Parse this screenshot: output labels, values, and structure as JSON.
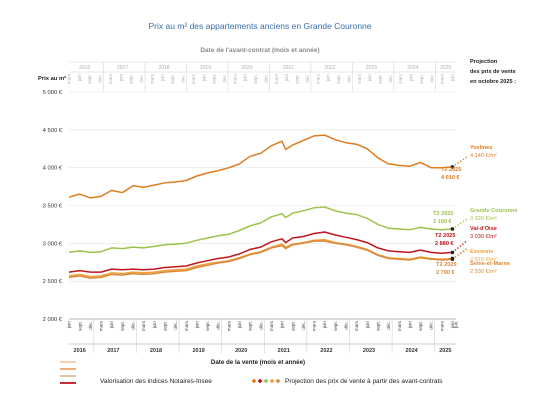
{
  "chart_data": {
    "type": "line",
    "title": "Prix au m² des appartements anciens en Grande Couronne",
    "top_axis_label": "Date de l'avant-contrat (mois et année)",
    "ylabel": "Prix au m²",
    "xlabel": "Date de la vente (mois et année)",
    "projection_header": [
      "Projection",
      "des prix de vente",
      "en octobre 2025 :"
    ],
    "ylim": [
      2000,
      5000
    ],
    "y_ticks": [
      "2 000 €",
      "2 500 €",
      "3 000 €",
      "3 500 €",
      "4 000 €",
      "4 500 €",
      "5 000 €"
    ],
    "y_tick_values": [
      2000,
      2500,
      3000,
      3500,
      4000,
      4500,
      5000
    ],
    "month_labels": [
      "juin",
      "juil.",
      "sept.",
      "déc.",
      "mars"
    ],
    "top_month_labels": [
      "mars",
      "juin",
      "sept.",
      "déc."
    ],
    "bottom_start": "2016-06",
    "bottom_end": "2025-07",
    "top_start": "2016-03",
    "top_end": "2025-07",
    "bottom_years": [
      "2016",
      "2017",
      "2018",
      "2019",
      "2020",
      "2021",
      "2022",
      "2023",
      "2024",
      "2025"
    ],
    "top_years": [
      "2016",
      "2017",
      "2018",
      "2019",
      "2020",
      "2021",
      "2022",
      "2023",
      "2024",
      "2025"
    ],
    "series": [
      {
        "name": "Yvelines",
        "color": "#e07b1f",
        "label_lines": [
          "Yvelines",
          "4 140 €/m²"
        ],
        "end_label": [
          "T2 2025",
          "4 010 €"
        ],
        "points": [
          [
            "2016-06",
            3610
          ],
          [
            "2016-09",
            3650
          ],
          [
            "2016-12",
            3600
          ],
          [
            "2017-03",
            3620
          ],
          [
            "2017-06",
            3700
          ],
          [
            "2017-09",
            3670
          ],
          [
            "2017-12",
            3760
          ],
          [
            "2018-03",
            3740
          ],
          [
            "2018-06",
            3770
          ],
          [
            "2018-09",
            3800
          ],
          [
            "2018-12",
            3810
          ],
          [
            "2019-03",
            3830
          ],
          [
            "2019-06",
            3890
          ],
          [
            "2019-09",
            3930
          ],
          [
            "2019-12",
            3960
          ],
          [
            "2020-03",
            4000
          ],
          [
            "2020-06",
            4050
          ],
          [
            "2020-09",
            4150
          ],
          [
            "2020-12",
            4190
          ],
          [
            "2021-03",
            4290
          ],
          [
            "2021-06",
            4350
          ],
          [
            "2021-07",
            4240
          ],
          [
            "2021-09",
            4300
          ],
          [
            "2021-12",
            4360
          ],
          [
            "2022-03",
            4420
          ],
          [
            "2022-06",
            4430
          ],
          [
            "2022-09",
            4370
          ],
          [
            "2022-12",
            4330
          ],
          [
            "2023-03",
            4310
          ],
          [
            "2023-06",
            4250
          ],
          [
            "2023-09",
            4130
          ],
          [
            "2023-12",
            4050
          ],
          [
            "2024-03",
            4030
          ],
          [
            "2024-06",
            4020
          ],
          [
            "2024-09",
            4070
          ],
          [
            "2024-12",
            4000
          ],
          [
            "2025-03",
            4000
          ],
          [
            "2025-06",
            4010
          ]
        ],
        "projection": [
          [
            "2025-06",
            4010
          ],
          [
            "2025-10",
            4140
          ]
        ]
      },
      {
        "name": "Grande Couronne",
        "color": "#9dc34a",
        "label_lines": [
          "Grande Couronne",
          "3 320 €/m²"
        ],
        "end_label": [
          "T2 2025",
          "3 190 €"
        ],
        "points": [
          [
            "2016-06",
            2880
          ],
          [
            "2016-09",
            2900
          ],
          [
            "2016-12",
            2880
          ],
          [
            "2017-03",
            2890
          ],
          [
            "2017-06",
            2940
          ],
          [
            "2017-09",
            2930
          ],
          [
            "2017-12",
            2950
          ],
          [
            "2018-03",
            2940
          ],
          [
            "2018-06",
            2960
          ],
          [
            "2018-09",
            2980
          ],
          [
            "2018-12",
            2990
          ],
          [
            "2019-03",
            3000
          ],
          [
            "2019-06",
            3040
          ],
          [
            "2019-09",
            3070
          ],
          [
            "2019-12",
            3100
          ],
          [
            "2020-03",
            3120
          ],
          [
            "2020-06",
            3170
          ],
          [
            "2020-09",
            3230
          ],
          [
            "2020-12",
            3270
          ],
          [
            "2021-03",
            3350
          ],
          [
            "2021-06",
            3390
          ],
          [
            "2021-07",
            3340
          ],
          [
            "2021-09",
            3400
          ],
          [
            "2021-12",
            3430
          ],
          [
            "2022-03",
            3470
          ],
          [
            "2022-06",
            3480
          ],
          [
            "2022-09",
            3430
          ],
          [
            "2022-12",
            3400
          ],
          [
            "2023-03",
            3380
          ],
          [
            "2023-06",
            3330
          ],
          [
            "2023-09",
            3250
          ],
          [
            "2023-12",
            3200
          ],
          [
            "2024-03",
            3190
          ],
          [
            "2024-06",
            3180
          ],
          [
            "2024-09",
            3210
          ],
          [
            "2024-12",
            3190
          ],
          [
            "2025-03",
            3180
          ],
          [
            "2025-06",
            3190
          ]
        ],
        "projection": [
          [
            "2025-06",
            3190
          ],
          [
            "2025-10",
            3320
          ]
        ]
      },
      {
        "name": "Val-d'Oise",
        "color": "#c0161c",
        "label_lines": [
          "Val-d'Oise",
          "3 030 €/m²"
        ],
        "end_label": [
          "T2 2025",
          "2 880 €"
        ],
        "points": [
          [
            "2016-06",
            2620
          ],
          [
            "2016-09",
            2640
          ],
          [
            "2016-12",
            2620
          ],
          [
            "2017-03",
            2620
          ],
          [
            "2017-06",
            2660
          ],
          [
            "2017-09",
            2650
          ],
          [
            "2017-12",
            2660
          ],
          [
            "2018-03",
            2650
          ],
          [
            "2018-06",
            2660
          ],
          [
            "2018-09",
            2680
          ],
          [
            "2018-12",
            2690
          ],
          [
            "2019-03",
            2700
          ],
          [
            "2019-06",
            2740
          ],
          [
            "2019-09",
            2770
          ],
          [
            "2019-12",
            2800
          ],
          [
            "2020-03",
            2820
          ],
          [
            "2020-06",
            2860
          ],
          [
            "2020-09",
            2920
          ],
          [
            "2020-12",
            2950
          ],
          [
            "2021-03",
            3020
          ],
          [
            "2021-06",
            3060
          ],
          [
            "2021-07",
            3010
          ],
          [
            "2021-09",
            3070
          ],
          [
            "2021-12",
            3090
          ],
          [
            "2022-03",
            3130
          ],
          [
            "2022-06",
            3150
          ],
          [
            "2022-09",
            3110
          ],
          [
            "2022-12",
            3080
          ],
          [
            "2023-03",
            3050
          ],
          [
            "2023-06",
            3010
          ],
          [
            "2023-09",
            2940
          ],
          [
            "2023-12",
            2900
          ],
          [
            "2024-03",
            2890
          ],
          [
            "2024-06",
            2880
          ],
          [
            "2024-09",
            2910
          ],
          [
            "2024-12",
            2880
          ],
          [
            "2025-03",
            2870
          ],
          [
            "2025-06",
            2880
          ]
        ],
        "projection": [
          [
            "2025-06",
            2880
          ],
          [
            "2025-10",
            3030
          ]
        ]
      },
      {
        "name": "Essonne",
        "color": "#f0a23a",
        "label_lines": [
          "Essonne",
          "2 910 €/m²"
        ],
        "end_label": [],
        "points": [
          [
            "2016-06",
            2570
          ],
          [
            "2016-09",
            2590
          ],
          [
            "2016-12",
            2560
          ],
          [
            "2017-03",
            2570
          ],
          [
            "2017-06",
            2610
          ],
          [
            "2017-09",
            2600
          ],
          [
            "2017-12",
            2620
          ],
          [
            "2018-03",
            2610
          ],
          [
            "2018-06",
            2620
          ],
          [
            "2018-09",
            2640
          ],
          [
            "2018-12",
            2650
          ],
          [
            "2019-03",
            2660
          ],
          [
            "2019-06",
            2700
          ],
          [
            "2019-09",
            2730
          ],
          [
            "2019-12",
            2750
          ],
          [
            "2020-03",
            2770
          ],
          [
            "2020-06",
            2810
          ],
          [
            "2020-09",
            2860
          ],
          [
            "2020-12",
            2890
          ],
          [
            "2021-03",
            2950
          ],
          [
            "2021-06",
            2990
          ],
          [
            "2021-07",
            2950
          ],
          [
            "2021-09",
            2990
          ],
          [
            "2021-12",
            3010
          ],
          [
            "2022-03",
            3040
          ],
          [
            "2022-06",
            3050
          ],
          [
            "2022-09",
            3010
          ],
          [
            "2022-12",
            2990
          ],
          [
            "2023-03",
            2960
          ],
          [
            "2023-06",
            2920
          ],
          [
            "2023-09",
            2850
          ],
          [
            "2023-12",
            2810
          ],
          [
            "2024-03",
            2800
          ],
          [
            "2024-06",
            2790
          ],
          [
            "2024-09",
            2820
          ],
          [
            "2024-12",
            2800
          ],
          [
            "2025-03",
            2790
          ],
          [
            "2025-06",
            2800
          ]
        ],
        "projection": [
          [
            "2025-06",
            2800
          ],
          [
            "2025-10",
            2910
          ]
        ]
      },
      {
        "name": "Seine-et-Marne",
        "color": "#d9893c",
        "label_lines": [
          "Seine-et-Marne",
          "2 930 €/m²"
        ],
        "end_label": [
          "T2 2025",
          "2 790 €"
        ],
        "points": [
          [
            "2016-06",
            2550
          ],
          [
            "2016-09",
            2570
          ],
          [
            "2016-12",
            2540
          ],
          [
            "2017-03",
            2550
          ],
          [
            "2017-06",
            2590
          ],
          [
            "2017-09",
            2580
          ],
          [
            "2017-12",
            2600
          ],
          [
            "2018-03",
            2590
          ],
          [
            "2018-06",
            2600
          ],
          [
            "2018-09",
            2620
          ],
          [
            "2018-12",
            2630
          ],
          [
            "2019-03",
            2640
          ],
          [
            "2019-06",
            2680
          ],
          [
            "2019-09",
            2710
          ],
          [
            "2019-12",
            2740
          ],
          [
            "2020-03",
            2760
          ],
          [
            "2020-06",
            2800
          ],
          [
            "2020-09",
            2850
          ],
          [
            "2020-12",
            2880
          ],
          [
            "2021-03",
            2940
          ],
          [
            "2021-06",
            2970
          ],
          [
            "2021-07",
            2930
          ],
          [
            "2021-09",
            2980
          ],
          [
            "2021-12",
            3000
          ],
          [
            "2022-03",
            3030
          ],
          [
            "2022-06",
            3030
          ],
          [
            "2022-09",
            3000
          ],
          [
            "2022-12",
            2980
          ],
          [
            "2023-03",
            2950
          ],
          [
            "2023-06",
            2910
          ],
          [
            "2023-09",
            2840
          ],
          [
            "2023-12",
            2800
          ],
          [
            "2024-03",
            2790
          ],
          [
            "2024-06",
            2780
          ],
          [
            "2024-09",
            2810
          ],
          [
            "2024-12",
            2790
          ],
          [
            "2025-03",
            2780
          ],
          [
            "2025-06",
            2790
          ]
        ],
        "projection": [
          [
            "2025-06",
            2790
          ],
          [
            "2025-10",
            2930
          ]
        ]
      }
    ],
    "legend": {
      "line_label": "Valorisation des indices Notaires-Insee",
      "projection_label": "Projection des prix de vente à partir des avant-contrats",
      "line_colors": [
        "#f3b57a",
        "#e07b1f",
        "#c9a05a",
        "#c0161c"
      ],
      "diamond_colors": [
        "#e07b1f",
        "#c0161c",
        "#9dc34a",
        "#f0a23a",
        "#d9893c"
      ]
    },
    "grid": "horizontal",
    "background": "#ffffff"
  }
}
